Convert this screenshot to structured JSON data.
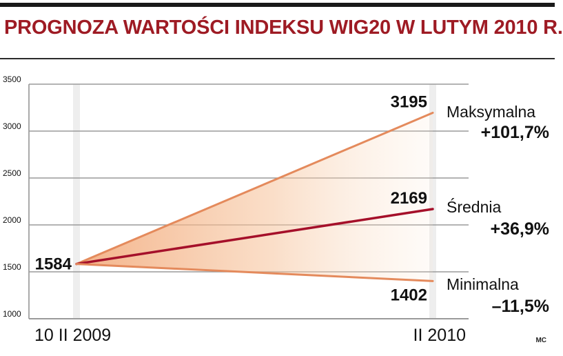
{
  "title": "PROGNOZA WARTOŚCI INDEKSU WIG20 W LUTYM 2010 R.",
  "credit": "MC",
  "colors": {
    "title": "#9e1b24",
    "average_line": "#a5102a",
    "bound_lines": "#e48a5c",
    "fan_fill": "#f2a574",
    "grid": "#9a9a9a"
  },
  "chart_data": {
    "type": "line",
    "x": [
      "10 II 2009",
      "II 2010"
    ],
    "ylim": [
      1000,
      3500
    ],
    "yticks": [
      1000,
      1500,
      2000,
      2500,
      3000,
      3500
    ],
    "grid": true,
    "start_value": 1584,
    "series": [
      {
        "name": "Maksymalna",
        "values": [
          1584,
          3195
        ],
        "change": "+101,7%"
      },
      {
        "name": "Średnia",
        "values": [
          1584,
          2169
        ],
        "change": "+36,9%"
      },
      {
        "name": "Minimalna",
        "values": [
          1584,
          1402
        ],
        "change": "–11,5%"
      }
    ]
  }
}
